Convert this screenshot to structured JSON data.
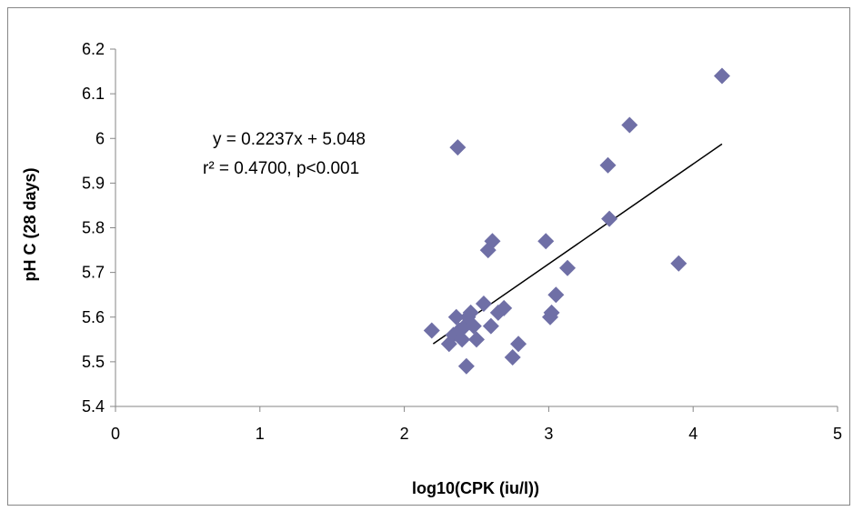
{
  "chart_data": {
    "type": "scatter",
    "xlabel": "log10(CPK (iu/l))",
    "ylabel": "pH C (28 days)",
    "xlim": [
      0,
      5
    ],
    "ylim": [
      5.4,
      6.2
    ],
    "xticks": [
      "0",
      "1",
      "2",
      "3",
      "4",
      "5"
    ],
    "yticks": [
      "5.4",
      "5.5",
      "5.6",
      "5.7",
      "5.8",
      "5.9",
      "6",
      "6.1",
      "6.2"
    ],
    "grid": false,
    "legend": "none",
    "marker_color": "#6F6FA6",
    "annotations": [
      "y = 0.2237x + 5.048",
      "r² = 0.4700, p<0.001"
    ],
    "trendline": {
      "slope": 0.2237,
      "intercept": 5.048,
      "x_range": [
        2.2,
        4.2
      ],
      "color": "#000000"
    },
    "points": [
      [
        2.19,
        5.57
      ],
      [
        2.31,
        5.54
      ],
      [
        2.34,
        5.56
      ],
      [
        2.36,
        5.6
      ],
      [
        2.38,
        5.57
      ],
      [
        2.4,
        5.55
      ],
      [
        2.42,
        5.58
      ],
      [
        2.44,
        5.6
      ],
      [
        2.46,
        5.61
      ],
      [
        2.48,
        5.58
      ],
      [
        2.5,
        5.55
      ],
      [
        2.43,
        5.49
      ],
      [
        2.37,
        5.98
      ],
      [
        2.55,
        5.63
      ],
      [
        2.58,
        5.75
      ],
      [
        2.61,
        5.77
      ],
      [
        2.6,
        5.58
      ],
      [
        2.65,
        5.61
      ],
      [
        2.69,
        5.62
      ],
      [
        2.75,
        5.51
      ],
      [
        2.79,
        5.54
      ],
      [
        2.98,
        5.77
      ],
      [
        3.01,
        5.6
      ],
      [
        3.02,
        5.61
      ],
      [
        3.05,
        5.65
      ],
      [
        3.13,
        5.71
      ],
      [
        3.41,
        5.94
      ],
      [
        3.42,
        5.82
      ],
      [
        3.56,
        6.03
      ],
      [
        3.9,
        5.72
      ],
      [
        4.2,
        6.14
      ]
    ]
  }
}
